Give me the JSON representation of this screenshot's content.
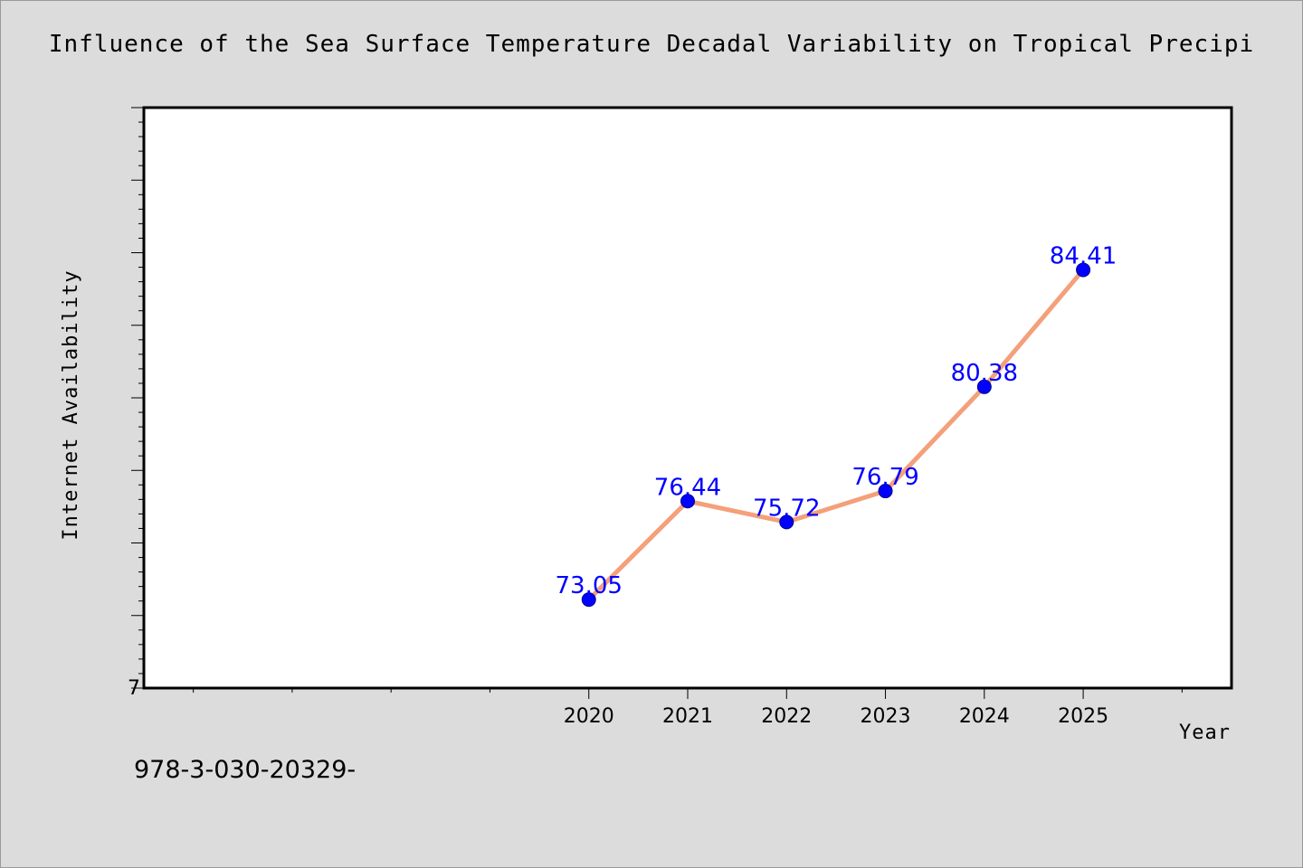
{
  "chart_data": {
    "type": "line",
    "title": "Influence of the Sea Surface Temperature Decadal Variability on Tropical Precipi",
    "xlabel": "Year",
    "ylabel": "Internet Availability",
    "x": [
      "2020",
      "2021",
      "2022",
      "2023",
      "2024",
      "2025"
    ],
    "values": [
      73.05,
      76.44,
      75.72,
      76.79,
      80.38,
      84.41
    ],
    "data_labels": [
      "73.05",
      "76.44",
      "75.72",
      "76.79",
      "80.38",
      "84.41"
    ],
    "y_tick_labels": [
      "7"
    ],
    "ylim": [
      70,
      90
    ],
    "xlim": [
      2015.5,
      2026.5
    ],
    "grid": false,
    "legend": "none",
    "colors": {
      "line": "#f4a07a",
      "marker": "#0000ff",
      "data_label": "#0000ff",
      "background": "#dcdcdc",
      "plot_background": "#ffffff"
    }
  },
  "footer": {
    "text": "978-3-030-20329-"
  }
}
